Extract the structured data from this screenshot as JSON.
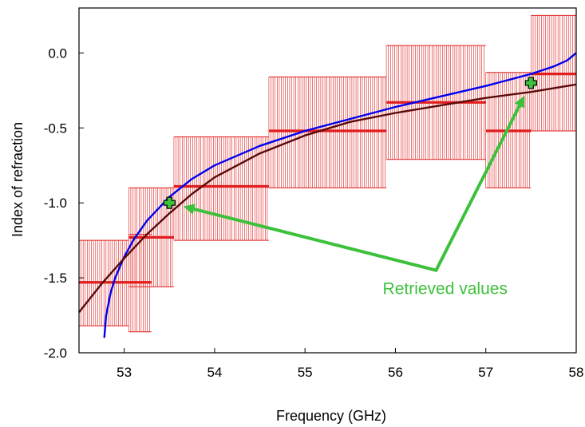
{
  "chart_data": {
    "type": "line",
    "title": "",
    "xlabel": "Frequency (GHz)",
    "ylabel": "Index of refraction",
    "xlim": [
      52.5,
      58
    ],
    "ylim": [
      -2.0,
      0.3
    ],
    "grid": false,
    "xticks": [
      53,
      54,
      55,
      56,
      57,
      58
    ],
    "xtick_labels": [
      "53",
      "54",
      "55",
      "56",
      "57",
      "58"
    ],
    "yticks": [
      0.0,
      -0.5,
      -1.0,
      -1.5,
      -2.0
    ],
    "ytick_labels": [
      "0.0",
      "-0.5",
      "-1.0",
      "-1.5",
      "-2.0"
    ],
    "error_boxes": [
      {
        "x_start": 52.5,
        "x_end": 53.05,
        "y": -1.53,
        "y_low": -1.82,
        "y_high": -1.25
      },
      {
        "x_start": 53.05,
        "x_end": 53.3,
        "y": -1.53,
        "y_low": -1.86,
        "y_high": -1.21
      },
      {
        "x_start": 53.05,
        "x_end": 53.55,
        "y": -1.23,
        "y_low": -1.56,
        "y_high": -0.9
      },
      {
        "x_start": 53.55,
        "x_end": 54.6,
        "y": -0.89,
        "y_low": -1.25,
        "y_high": -0.56
      },
      {
        "x_start": 54.6,
        "x_end": 55.9,
        "y": -0.52,
        "y_low": -0.9,
        "y_high": -0.16
      },
      {
        "x_start": 55.9,
        "x_end": 57.0,
        "y": -0.33,
        "y_low": -0.71,
        "y_high": 0.05
      },
      {
        "x_start": 57.0,
        "x_end": 57.5,
        "y": -0.52,
        "y_low": -0.9,
        "y_high": -0.13
      },
      {
        "x_start": 57.5,
        "x_end": 58.0,
        "y": -0.14,
        "y_low": -0.52,
        "y_high": 0.25
      }
    ],
    "series": [
      {
        "color": "#0000ee",
        "x": [
          52.78,
          52.8,
          52.85,
          52.9,
          53.0,
          53.1,
          53.25,
          53.5,
          53.75,
          54.0,
          54.5,
          55.0,
          55.5,
          56.0,
          56.5,
          57.0,
          57.5,
          57.75,
          57.9,
          58.0
        ],
        "y": [
          -1.9,
          -1.75,
          -1.6,
          -1.5,
          -1.36,
          -1.25,
          -1.12,
          -0.96,
          -0.84,
          -0.75,
          -0.62,
          -0.52,
          -0.44,
          -0.36,
          -0.29,
          -0.22,
          -0.14,
          -0.09,
          -0.05,
          0.0
        ]
      },
      {
        "color": "#5a0a0a",
        "x": [
          52.5,
          52.75,
          53.0,
          53.25,
          53.5,
          53.75,
          54.0,
          54.5,
          55.0,
          55.5,
          56.0,
          56.5,
          57.0,
          57.5,
          58.0
        ],
        "y": [
          -1.73,
          -1.54,
          -1.37,
          -1.21,
          -1.07,
          -0.94,
          -0.83,
          -0.67,
          -0.55,
          -0.46,
          -0.4,
          -0.35,
          -0.3,
          -0.26,
          -0.21
        ]
      }
    ],
    "retrieved_points": [
      {
        "x": 53.5,
        "y": -1.0
      },
      {
        "x": 57.5,
        "y": -0.2
      }
    ],
    "annotation": {
      "text": "Retrieved values",
      "label_x": 56.55,
      "label_y": -1.61,
      "arrow_origin": {
        "x": 56.45,
        "y": -1.45
      }
    },
    "colors": {
      "error_box": "#e11d1d",
      "annotation": "#3dc13d",
      "marker_fill": "#3dc13d"
    }
  }
}
